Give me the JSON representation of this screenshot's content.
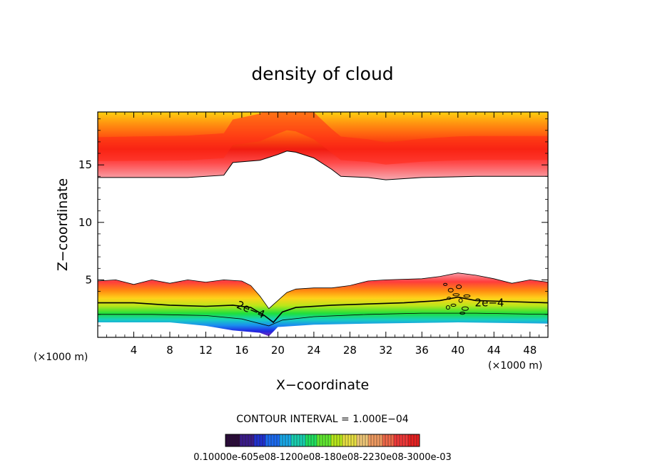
{
  "chart_data": {
    "type": "contour",
    "title": "density of cloud",
    "xlabel": "X−coordinate",
    "ylabel": "Z−coordinate",
    "x_unit": "(×1000 m)",
    "y_unit": "(×1000 m)",
    "xlim": [
      0,
      50
    ],
    "ylim": [
      0,
      19.6
    ],
    "x_ticks": [
      {
        "value": 4,
        "label": "4"
      },
      {
        "value": 8,
        "label": "8"
      },
      {
        "value": 12,
        "label": "12"
      },
      {
        "value": 16,
        "label": "16"
      },
      {
        "value": 20,
        "label": "20"
      },
      {
        "value": 24,
        "label": "24"
      },
      {
        "value": 28,
        "label": "28"
      },
      {
        "value": 32,
        "label": "32"
      },
      {
        "value": 36,
        "label": "36"
      },
      {
        "value": 40,
        "label": "40"
      },
      {
        "value": 44,
        "label": "44"
      },
      {
        "value": 48,
        "label": "48"
      }
    ],
    "y_ticks": [
      {
        "value": 5,
        "label": "5"
      },
      {
        "value": 10,
        "label": "10"
      },
      {
        "value": 15,
        "label": "15"
      }
    ],
    "contour_interval_text": "CONTOUR INTERVAL = 1.000E−04",
    "colorbar_label_text": "0.10000e-605e08-1200e08-180e08-2230e08-3000e-03",
    "contour_labels": [
      {
        "text": "2e−4",
        "x": 43.5,
        "z": 3.0
      },
      {
        "text": "2e−4",
        "x": 17.0,
        "z": 2.4
      }
    ],
    "upper_layer": {
      "lower_edge": [
        [
          0,
          13.9
        ],
        [
          10,
          13.9
        ],
        [
          14,
          14.1
        ],
        [
          15,
          15.2
        ],
        [
          18,
          15.4
        ],
        [
          20,
          15.9
        ],
        [
          21,
          16.2
        ],
        [
          22,
          16.1
        ],
        [
          24,
          15.6
        ],
        [
          26,
          14.6
        ],
        [
          27,
          14.0
        ],
        [
          30,
          13.9
        ],
        [
          32,
          13.7
        ],
        [
          36,
          13.9
        ],
        [
          42,
          14.0
        ],
        [
          50,
          14.0
        ]
      ],
      "core_depth": [
        [
          0,
          2.6
        ],
        [
          10,
          2.7
        ],
        [
          14,
          2.7
        ],
        [
          18,
          3.0
        ],
        [
          20,
          3.3
        ],
        [
          22,
          3.3
        ],
        [
          26,
          2.6
        ],
        [
          32,
          2.4
        ],
        [
          40,
          2.6
        ],
        [
          50,
          2.6
        ]
      ]
    },
    "lower_layer": {
      "top_edge": [
        [
          0,
          4.9
        ],
        [
          2,
          5.0
        ],
        [
          4,
          4.6
        ],
        [
          6,
          5.0
        ],
        [
          8,
          4.7
        ],
        [
          10,
          5.0
        ],
        [
          12,
          4.8
        ],
        [
          14,
          5.0
        ],
        [
          16,
          4.9
        ],
        [
          17,
          4.5
        ],
        [
          18,
          3.6
        ],
        [
          19,
          2.5
        ],
        [
          20,
          3.2
        ],
        [
          21,
          3.9
        ],
        [
          22,
          4.2
        ],
        [
          24,
          4.3
        ],
        [
          26,
          4.3
        ],
        [
          28,
          4.5
        ],
        [
          30,
          4.9
        ],
        [
          32,
          5.0
        ],
        [
          36,
          5.1
        ],
        [
          38,
          5.3
        ],
        [
          40,
          5.6
        ],
        [
          42,
          5.4
        ],
        [
          44,
          5.1
        ],
        [
          46,
          4.7
        ],
        [
          48,
          5.0
        ],
        [
          50,
          4.8
        ]
      ],
      "level_2e4": [
        [
          0,
          3.0
        ],
        [
          4,
          3.0
        ],
        [
          8,
          2.8
        ],
        [
          12,
          2.7
        ],
        [
          15,
          2.8
        ],
        [
          17,
          2.6
        ],
        [
          18.5,
          1.9
        ],
        [
          19.5,
          1.3
        ],
        [
          20.5,
          2.2
        ],
        [
          22,
          2.6
        ],
        [
          26,
          2.8
        ],
        [
          30,
          2.9
        ],
        [
          34,
          3.0
        ],
        [
          38,
          3.2
        ],
        [
          40,
          3.5
        ],
        [
          42,
          3.2
        ],
        [
          46,
          3.1
        ],
        [
          50,
          3.0
        ]
      ],
      "mid_edge": [
        [
          0,
          2.0
        ],
        [
          6,
          2.0
        ],
        [
          12,
          1.9
        ],
        [
          16,
          1.6
        ],
        [
          19,
          1.0
        ],
        [
          20.5,
          1.5
        ],
        [
          24,
          1.8
        ],
        [
          30,
          2.0
        ],
        [
          36,
          2.1
        ],
        [
          42,
          2.1
        ],
        [
          50,
          2.0
        ]
      ],
      "bottom_edge": [
        [
          0,
          1.3
        ],
        [
          8,
          1.3
        ],
        [
          12,
          1.0
        ],
        [
          15,
          0.6
        ],
        [
          18,
          0.4
        ],
        [
          19,
          0.1
        ],
        [
          20,
          0.9
        ],
        [
          24,
          1.1
        ],
        [
          30,
          1.2
        ],
        [
          40,
          1.3
        ],
        [
          50,
          1.2
        ]
      ]
    }
  }
}
